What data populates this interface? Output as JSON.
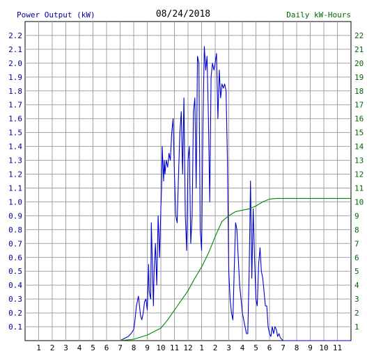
{
  "chart_data": {
    "type": "line",
    "title": "08/24/2018",
    "ylabel_left": "Power Output (kW)",
    "ylabel_right": "Daily kW-Hours",
    "x_ticks": [
      "1",
      "2",
      "3",
      "4",
      "5",
      "6",
      "7",
      "8",
      "9",
      "10",
      "11",
      "12",
      "1",
      "2",
      "3",
      "4",
      "5",
      "6",
      "7",
      "8",
      "9",
      "10",
      "11"
    ],
    "xlim": [
      0,
      24
    ],
    "ylim_left": [
      0,
      2.3
    ],
    "ylim_right": [
      0,
      23
    ],
    "y_ticks_left": [
      "0.1",
      "0.2",
      "0.3",
      "0.4",
      "0.5",
      "0.6",
      "0.7",
      "0.8",
      "0.9",
      "1.0",
      "1.1",
      "1.2",
      "1.3",
      "1.4",
      "1.5",
      "1.6",
      "1.7",
      "1.8",
      "1.9",
      "2.0",
      "2.1",
      "2.2"
    ],
    "y_ticks_right": [
      "1",
      "2",
      "3",
      "4",
      "5",
      "6",
      "7",
      "8",
      "9",
      "10",
      "11",
      "12",
      "13",
      "14",
      "15",
      "16",
      "17",
      "18",
      "19",
      "20",
      "21",
      "22"
    ],
    "grid": true,
    "colors": {
      "power": "#0000cc",
      "energy": "#008800",
      "title": "#000000",
      "left_axis_text": "#000099",
      "right_axis_text": "#006600",
      "grid": "#a0a0a0"
    },
    "series": [
      {
        "key": "power",
        "axis": "left",
        "x": [
          7.0,
          7.2,
          7.4,
          7.6,
          7.8,
          8.0,
          8.1,
          8.2,
          8.35,
          8.5,
          8.6,
          8.7,
          8.8,
          8.9,
          9.0,
          9.1,
          9.15,
          9.25,
          9.3,
          9.4,
          9.45,
          9.5,
          9.6,
          9.7,
          9.8,
          9.9,
          10.0,
          10.05,
          10.1,
          10.2,
          10.25,
          10.3,
          10.4,
          10.5,
          10.6,
          10.7,
          10.8,
          10.9,
          11.0,
          11.1,
          11.2,
          11.3,
          11.4,
          11.5,
          11.6,
          11.7,
          11.8,
          11.9,
          12.0,
          12.1,
          12.2,
          12.3,
          12.4,
          12.5,
          12.6,
          12.7,
          12.8,
          12.9,
          13.0,
          13.1,
          13.2,
          13.3,
          13.4,
          13.5,
          13.6,
          13.7,
          13.8,
          13.9,
          14.0,
          14.1,
          14.2,
          14.3,
          14.4,
          14.5,
          14.6,
          14.7,
          14.8,
          14.9,
          15.0,
          15.1,
          15.2,
          15.3,
          15.4,
          15.5,
          15.6,
          15.7,
          15.8,
          15.9,
          16.0,
          16.1,
          16.2,
          16.3,
          16.4,
          16.5,
          16.6,
          16.7,
          16.8,
          16.9,
          17.0,
          17.1,
          17.2,
          17.3,
          17.4,
          17.5,
          17.6,
          17.7,
          17.8,
          17.9,
          18.0,
          18.1,
          18.2,
          18.3,
          18.4,
          18.5,
          18.6,
          18.7,
          18.8,
          18.9,
          19.0,
          19.1,
          19.2,
          19.4,
          19.6,
          19.8,
          20.0,
          24.0
        ],
        "y": [
          0.0,
          0.01,
          0.02,
          0.03,
          0.05,
          0.08,
          0.15,
          0.25,
          0.32,
          0.18,
          0.15,
          0.2,
          0.28,
          0.3,
          0.22,
          0.55,
          0.35,
          0.3,
          0.85,
          0.45,
          0.25,
          0.5,
          0.7,
          0.4,
          0.9,
          0.6,
          0.95,
          1.1,
          1.4,
          1.15,
          1.3,
          1.2,
          1.3,
          1.25,
          1.35,
          1.3,
          1.5,
          1.6,
          1.2,
          0.9,
          0.85,
          1.2,
          1.5,
          1.65,
          1.2,
          1.75,
          0.9,
          0.65,
          1.3,
          1.4,
          0.7,
          0.9,
          1.65,
          1.75,
          1.1,
          2.05,
          2.0,
          0.8,
          0.65,
          1.55,
          2.12,
          1.95,
          2.05,
          1.6,
          1.0,
          1.9,
          2.0,
          1.95,
          2.0,
          2.07,
          1.6,
          1.95,
          1.75,
          1.85,
          1.82,
          1.85,
          1.8,
          1.3,
          0.5,
          0.3,
          0.2,
          0.15,
          0.5,
          0.85,
          0.8,
          0.6,
          0.4,
          0.3,
          0.2,
          0.15,
          0.1,
          0.05,
          0.05,
          0.5,
          1.15,
          0.45,
          0.95,
          0.6,
          0.3,
          0.25,
          0.55,
          0.67,
          0.5,
          0.45,
          0.35,
          0.25,
          0.25,
          0.1,
          0.05,
          0.03,
          0.1,
          0.05,
          0.1,
          0.08,
          0.03,
          0.05,
          0.02,
          0.01,
          0.0,
          0.0,
          0.0,
          0.0,
          0.0,
          0.0,
          0.0,
          0.0
        ]
      },
      {
        "key": "energy",
        "axis": "right",
        "x": [
          7.0,
          8.0,
          9.0,
          10.0,
          10.5,
          11.0,
          11.5,
          12.0,
          12.5,
          13.0,
          13.5,
          14.0,
          14.5,
          15.0,
          15.5,
          16.0,
          16.5,
          17.0,
          17.5,
          18.0,
          18.5,
          19.0,
          20.0,
          21.0,
          24.0
        ],
        "y": [
          0.0,
          0.1,
          0.4,
          0.9,
          1.5,
          2.2,
          2.9,
          3.6,
          4.5,
          5.3,
          6.3,
          7.5,
          8.6,
          9.0,
          9.3,
          9.4,
          9.5,
          9.7,
          10.0,
          10.2,
          10.25,
          10.25,
          10.25,
          10.25,
          10.25
        ]
      }
    ]
  }
}
